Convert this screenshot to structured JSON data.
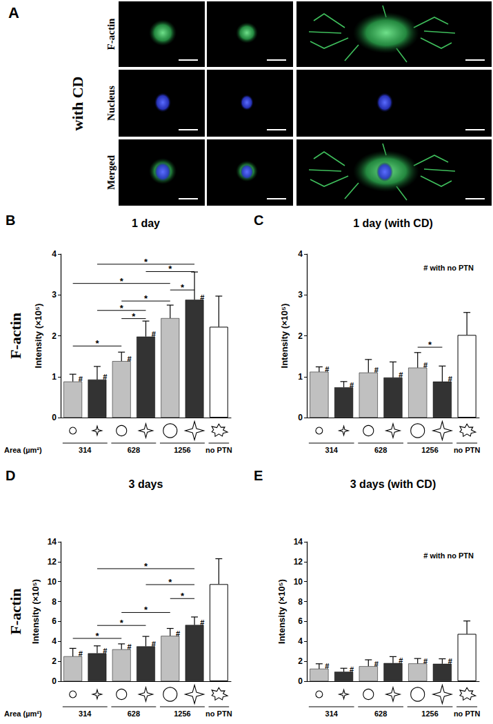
{
  "panel_a": {
    "label": "A",
    "condition": "with CD",
    "rows": [
      "F-actin",
      "Nucleus",
      "Merged"
    ]
  },
  "chart_data": [
    {
      "type": "bar",
      "panel": "B",
      "title": "1 day",
      "row_label": "F-actin",
      "ylabel": "Intensity (×10⁵)",
      "area_label": "Area (µm²)",
      "categories": [
        null,
        null,
        null,
        null,
        null,
        null,
        null
      ],
      "markers": [
        "circle",
        "star",
        "circle",
        "star",
        "circle",
        "star",
        "burst"
      ],
      "groups": [
        {
          "label": "314",
          "members": [
            0,
            1
          ]
        },
        {
          "label": "628",
          "members": [
            2,
            3
          ]
        },
        {
          "label": "1256",
          "members": [
            4,
            5
          ]
        },
        {
          "label": "no PTN",
          "members": [
            6
          ]
        }
      ],
      "values": [
        0.88,
        0.93,
        1.38,
        1.98,
        2.43,
        2.88,
        2.22
      ],
      "errors": [
        0.18,
        0.32,
        0.22,
        0.38,
        0.32,
        0.68,
        0.75
      ],
      "colors": [
        "#c0c0c0",
        "#333333",
        "#c0c0c0",
        "#333333",
        "#c0c0c0",
        "#333333",
        "#ffffff"
      ],
      "flag_labels": [
        "#",
        "#",
        "#",
        "#",
        null,
        "#",
        null
      ],
      "comparisons": [
        {
          "from": 1,
          "to": 5,
          "y": 3.75,
          "label": "*"
        },
        {
          "from": 3,
          "to": 5,
          "y": 3.57,
          "label": "*"
        },
        {
          "from": 0,
          "to": 4,
          "y": 3.28,
          "label": "*"
        },
        {
          "from": 4,
          "to": 5,
          "y": 3.12,
          "label": "*"
        },
        {
          "from": 2,
          "to": 4,
          "y": 2.85,
          "label": "*"
        },
        {
          "from": 1,
          "to": 3,
          "y": 2.62,
          "label": "*"
        },
        {
          "from": 2,
          "to": 3,
          "y": 2.42,
          "label": "*"
        },
        {
          "from": 0,
          "to": 2,
          "y": 1.75,
          "label": "*"
        }
      ],
      "ylim": [
        0,
        4
      ],
      "yticks": [
        0,
        1,
        2,
        3,
        4
      ],
      "grid": false
    },
    {
      "type": "bar",
      "panel": "C",
      "title": "1 day (with CD)",
      "ylabel": "Intensity (×10⁵)",
      "annotation": "# with no PTN",
      "categories": [
        null,
        null,
        null,
        null,
        null,
        null,
        null
      ],
      "markers": [
        "circle",
        "star",
        "circle",
        "star",
        "circle",
        "star",
        "burst"
      ],
      "groups": [
        {
          "label": "314",
          "members": [
            0,
            1
          ]
        },
        {
          "label": "628",
          "members": [
            2,
            3
          ]
        },
        {
          "label": "1256",
          "members": [
            4,
            5
          ]
        },
        {
          "label": "no PTN",
          "members": [
            6
          ]
        }
      ],
      "values": [
        1.12,
        0.74,
        1.1,
        0.98,
        1.22,
        0.88,
        2.02
      ],
      "errors": [
        0.12,
        0.14,
        0.32,
        0.38,
        0.37,
        0.38,
        0.55
      ],
      "colors": [
        "#c0c0c0",
        "#333333",
        "#c0c0c0",
        "#333333",
        "#c0c0c0",
        "#333333",
        "#ffffff"
      ],
      "flag_labels": [
        "#",
        "#",
        "#",
        "#",
        "#",
        "#",
        null
      ],
      "comparisons": [
        {
          "from": 4,
          "to": 5,
          "y": 1.72,
          "label": "*"
        }
      ],
      "ylim": [
        0,
        4
      ],
      "yticks": [
        0,
        1,
        2,
        3,
        4
      ],
      "grid": false
    },
    {
      "type": "bar",
      "panel": "D",
      "title": "3 days",
      "row_label": "F-actin",
      "ylabel": "Intensity (×10⁵)",
      "area_label": "Area (µm²)",
      "categories": [
        null,
        null,
        null,
        null,
        null,
        null,
        null
      ],
      "markers": [
        "circle",
        "star",
        "circle",
        "star",
        "circle",
        "star",
        "burst"
      ],
      "groups": [
        {
          "label": "314",
          "members": [
            0,
            1
          ]
        },
        {
          "label": "628",
          "members": [
            2,
            3
          ]
        },
        {
          "label": "1256",
          "members": [
            4,
            5
          ]
        },
        {
          "label": "no PTN",
          "members": [
            6
          ]
        }
      ],
      "values": [
        2.5,
        2.8,
        3.2,
        3.5,
        4.55,
        5.65,
        9.75
      ],
      "errors": [
        0.8,
        0.75,
        0.55,
        1.0,
        0.75,
        0.8,
        2.55
      ],
      "colors": [
        "#c0c0c0",
        "#333333",
        "#c0c0c0",
        "#333333",
        "#c0c0c0",
        "#333333",
        "#ffffff"
      ],
      "flag_labels": [
        "#",
        "#",
        "#",
        "#",
        "#",
        "#",
        null
      ],
      "comparisons": [
        {
          "from": 1,
          "to": 5,
          "y": 11.3,
          "label": "*"
        },
        {
          "from": 3,
          "to": 5,
          "y": 9.7,
          "label": "*"
        },
        {
          "from": 4,
          "to": 5,
          "y": 8.3,
          "label": "*"
        },
        {
          "from": 2,
          "to": 4,
          "y": 6.9,
          "label": "*"
        },
        {
          "from": 1,
          "to": 3,
          "y": 5.6,
          "label": "*"
        },
        {
          "from": 0,
          "to": 2,
          "y": 4.3,
          "label": "*"
        }
      ],
      "ylim": [
        0,
        14
      ],
      "yticks": [
        0,
        2,
        4,
        6,
        8,
        10,
        12,
        14
      ],
      "grid": false
    },
    {
      "type": "bar",
      "panel": "E",
      "title": "3 days (with CD)",
      "ylabel": "Intensity (×10⁵)",
      "annotation": "# with no PTN",
      "categories": [
        null,
        null,
        null,
        null,
        null,
        null,
        null
      ],
      "markers": [
        "circle",
        "star",
        "circle",
        "star",
        "circle",
        "star",
        "burst"
      ],
      "groups": [
        {
          "label": "314",
          "members": [
            0,
            1
          ]
        },
        {
          "label": "628",
          "members": [
            2,
            3
          ]
        },
        {
          "label": "1256",
          "members": [
            4,
            5
          ]
        },
        {
          "label": "no PTN",
          "members": [
            6
          ]
        }
      ],
      "values": [
        1.25,
        0.95,
        1.5,
        1.82,
        1.78,
        1.75,
        4.75
      ],
      "errors": [
        0.5,
        0.35,
        0.65,
        0.65,
        0.5,
        0.5,
        1.3
      ],
      "colors": [
        "#c0c0c0",
        "#333333",
        "#c0c0c0",
        "#333333",
        "#c0c0c0",
        "#333333",
        "#ffffff"
      ],
      "flag_labels": [
        "#",
        "#",
        "#",
        "#",
        "#",
        "#",
        null
      ],
      "comparisons": [],
      "ylim": [
        0,
        14
      ],
      "yticks": [
        0,
        2,
        4,
        6,
        8,
        10,
        12,
        14
      ],
      "grid": false
    }
  ]
}
